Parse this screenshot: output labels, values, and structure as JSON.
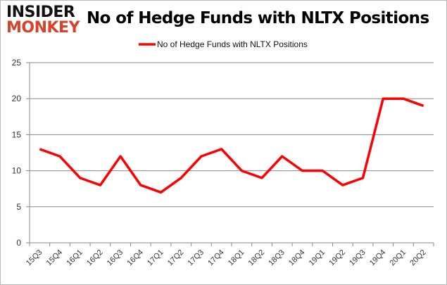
{
  "logo": {
    "line1": "INSIDER",
    "line2": "MONKEY"
  },
  "chart_data": {
    "type": "line",
    "title": "No of Hedge Funds with NLTX Positions",
    "categories": [
      "15Q3",
      "15Q4",
      "16Q1",
      "16Q2",
      "16Q3",
      "16Q4",
      "17Q1",
      "17Q2",
      "17Q3",
      "17Q4",
      "18Q1",
      "18Q2",
      "18Q3",
      "18Q4",
      "19Q1",
      "19Q2",
      "19Q3",
      "19Q4",
      "20Q1",
      "20Q2"
    ],
    "series": [
      {
        "name": "No of Hedge Funds with NLTX Positions",
        "color": "#ff0000",
        "values": [
          13,
          12,
          9,
          8,
          12,
          8,
          7,
          9,
          12,
          13,
          10,
          9,
          12,
          10,
          10,
          8,
          9,
          20,
          20,
          19
        ]
      }
    ],
    "ylim": [
      0,
      25
    ],
    "yticks": [
      0,
      5,
      10,
      15,
      20,
      25
    ],
    "grid": true,
    "legend": "top-center",
    "xlabel": "",
    "ylabel": ""
  }
}
